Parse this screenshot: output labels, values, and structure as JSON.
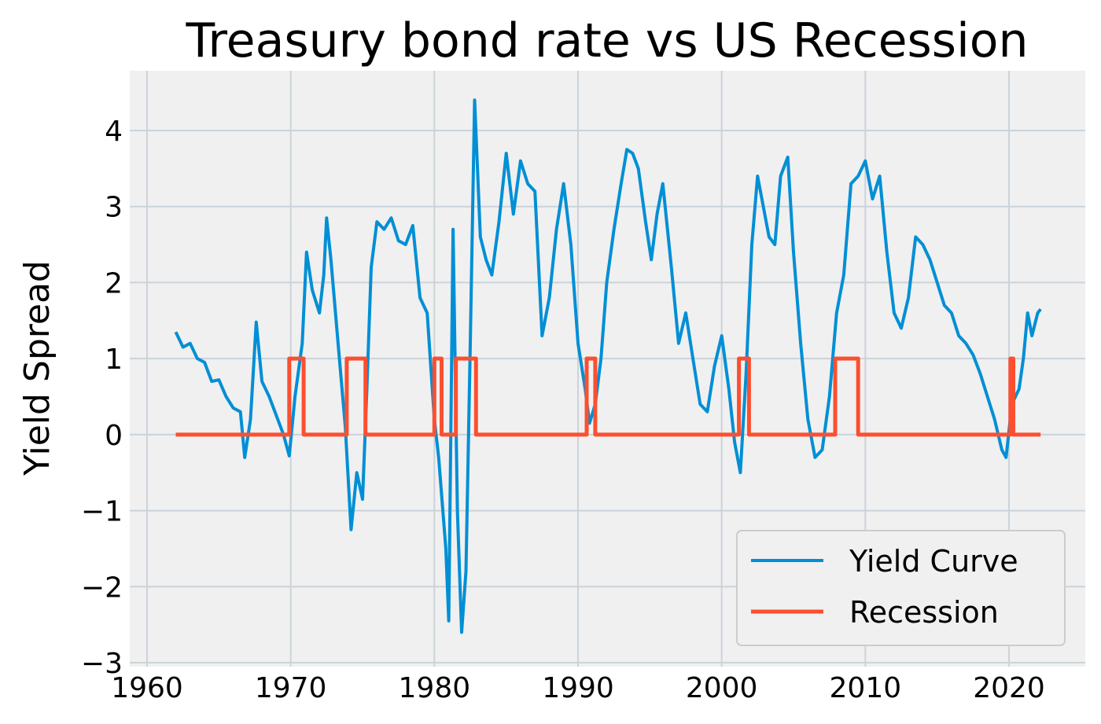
{
  "chart_data": {
    "type": "line",
    "title": "Treasury bond rate vs US Recession",
    "xlabel": "",
    "ylabel": "Yield Spread",
    "xlim": [
      1959.3,
      1964.6
    ],
    "ylim": [
      -3,
      4.8
    ],
    "x_ticks": [
      1960,
      1970,
      1980,
      1990,
      2000,
      2010,
      2020
    ],
    "y_ticks": [
      -3,
      -2,
      -1,
      0,
      1,
      2,
      3,
      4
    ],
    "x_tick_labels": [
      "1960",
      "1970",
      "1980",
      "1990",
      "2000",
      "2010",
      "2020"
    ],
    "y_tick_labels": [
      "−3",
      "−2",
      "−1",
      "0",
      "1",
      "2",
      "3",
      "4"
    ],
    "grid": true,
    "legend_position": "lower-right",
    "series": [
      {
        "name": "Yield Curve",
        "color": "#008fd5",
        "points": [
          [
            1962.0,
            1.35
          ],
          [
            1962.5,
            1.15
          ],
          [
            1963.0,
            1.2
          ],
          [
            1963.5,
            1.0
          ],
          [
            1964.0,
            0.95
          ],
          [
            1964.5,
            0.7
          ],
          [
            1965.0,
            0.72
          ],
          [
            1965.5,
            0.5
          ],
          [
            1966.0,
            0.35
          ],
          [
            1966.5,
            0.3
          ],
          [
            1966.8,
            -0.3
          ],
          [
            1967.2,
            0.2
          ],
          [
            1967.6,
            1.48
          ],
          [
            1968.0,
            0.7
          ],
          [
            1968.5,
            0.5
          ],
          [
            1969.0,
            0.25
          ],
          [
            1969.5,
            0.0
          ],
          [
            1969.9,
            -0.28
          ],
          [
            1970.3,
            0.5
          ],
          [
            1970.8,
            1.2
          ],
          [
            1971.1,
            2.4
          ],
          [
            1971.5,
            1.9
          ],
          [
            1972.0,
            1.6
          ],
          [
            1972.3,
            2.1
          ],
          [
            1972.5,
            2.85
          ],
          [
            1972.8,
            2.3
          ],
          [
            1973.3,
            1.2
          ],
          [
            1973.8,
            0.1
          ],
          [
            1974.2,
            -1.25
          ],
          [
            1974.6,
            -0.5
          ],
          [
            1975.0,
            -0.85
          ],
          [
            1975.3,
            0.6
          ],
          [
            1975.6,
            2.2
          ],
          [
            1976.0,
            2.8
          ],
          [
            1976.5,
            2.7
          ],
          [
            1977.0,
            2.85
          ],
          [
            1977.5,
            2.55
          ],
          [
            1978.0,
            2.5
          ],
          [
            1978.5,
            2.75
          ],
          [
            1979.0,
            1.8
          ],
          [
            1979.5,
            1.6
          ],
          [
            1980.0,
            0.2
          ],
          [
            1980.3,
            -0.3
          ],
          [
            1980.8,
            -1.5
          ],
          [
            1981.0,
            -2.45
          ],
          [
            1981.3,
            2.7
          ],
          [
            1981.6,
            -1.0
          ],
          [
            1981.9,
            -2.6
          ],
          [
            1982.2,
            -1.8
          ],
          [
            1982.5,
            1.2
          ],
          [
            1982.8,
            4.4
          ],
          [
            1983.2,
            2.6
          ],
          [
            1983.6,
            2.3
          ],
          [
            1984.0,
            2.1
          ],
          [
            1984.5,
            2.8
          ],
          [
            1985.0,
            3.7
          ],
          [
            1985.5,
            2.9
          ],
          [
            1986.0,
            3.6
          ],
          [
            1986.5,
            3.3
          ],
          [
            1987.0,
            3.2
          ],
          [
            1987.5,
            1.3
          ],
          [
            1988.0,
            1.8
          ],
          [
            1988.5,
            2.7
          ],
          [
            1989.0,
            3.3
          ],
          [
            1989.5,
            2.5
          ],
          [
            1990.0,
            1.2
          ],
          [
            1990.5,
            0.6
          ],
          [
            1990.8,
            0.15
          ],
          [
            1991.2,
            0.4
          ],
          [
            1991.6,
            1.0
          ],
          [
            1992.0,
            2.0
          ],
          [
            1992.5,
            2.7
          ],
          [
            1993.0,
            3.3
          ],
          [
            1993.4,
            3.75
          ],
          [
            1993.8,
            3.7
          ],
          [
            1994.2,
            3.5
          ],
          [
            1994.7,
            2.8
          ],
          [
            1995.1,
            2.3
          ],
          [
            1995.5,
            2.9
          ],
          [
            1995.9,
            3.3
          ],
          [
            1996.5,
            2.2
          ],
          [
            1997.0,
            1.2
          ],
          [
            1997.5,
            1.6
          ],
          [
            1998.0,
            1.0
          ],
          [
            1998.5,
            0.4
          ],
          [
            1999.0,
            0.3
          ],
          [
            1999.5,
            0.9
          ],
          [
            2000.0,
            1.3
          ],
          [
            2000.5,
            0.6
          ],
          [
            2000.9,
            -0.1
          ],
          [
            2001.3,
            -0.5
          ],
          [
            2001.7,
            0.8
          ],
          [
            2002.1,
            2.5
          ],
          [
            2002.5,
            3.4
          ],
          [
            2002.9,
            3.0
          ],
          [
            2003.3,
            2.6
          ],
          [
            2003.7,
            2.5
          ],
          [
            2004.1,
            3.4
          ],
          [
            2004.6,
            3.65
          ],
          [
            2005.0,
            2.4
          ],
          [
            2005.5,
            1.2
          ],
          [
            2006.0,
            0.2
          ],
          [
            2006.5,
            -0.3
          ],
          [
            2007.0,
            -0.2
          ],
          [
            2007.5,
            0.5
          ],
          [
            2008.0,
            1.6
          ],
          [
            2008.5,
            2.1
          ],
          [
            2009.0,
            3.3
          ],
          [
            2009.5,
            3.4
          ],
          [
            2010.0,
            3.6
          ],
          [
            2010.5,
            3.1
          ],
          [
            2011.0,
            3.4
          ],
          [
            2011.5,
            2.4
          ],
          [
            2012.0,
            1.6
          ],
          [
            2012.5,
            1.4
          ],
          [
            2013.0,
            1.8
          ],
          [
            2013.5,
            2.6
          ],
          [
            2014.0,
            2.5
          ],
          [
            2014.5,
            2.3
          ],
          [
            2015.0,
            2.0
          ],
          [
            2015.5,
            1.7
          ],
          [
            2016.0,
            1.6
          ],
          [
            2016.5,
            1.3
          ],
          [
            2017.0,
            1.2
          ],
          [
            2017.5,
            1.05
          ],
          [
            2018.0,
            0.8
          ],
          [
            2018.5,
            0.5
          ],
          [
            2019.0,
            0.2
          ],
          [
            2019.5,
            -0.2
          ],
          [
            2019.8,
            -0.3
          ],
          [
            2020.2,
            0.4
          ],
          [
            2020.7,
            0.6
          ],
          [
            2021.0,
            1.0
          ],
          [
            2021.3,
            1.6
          ],
          [
            2021.6,
            1.3
          ],
          [
            2022.0,
            1.6
          ],
          [
            2022.2,
            1.65
          ]
        ]
      },
      {
        "name": "Recession",
        "color": "#fc4f30",
        "points": [
          [
            1962.0,
            0
          ],
          [
            1969.9,
            0
          ],
          [
            1969.9,
            1
          ],
          [
            1970.9,
            1
          ],
          [
            1970.9,
            0
          ],
          [
            1973.9,
            0
          ],
          [
            1973.9,
            1
          ],
          [
            1975.2,
            1
          ],
          [
            1975.2,
            0
          ],
          [
            1980.0,
            0
          ],
          [
            1980.0,
            1
          ],
          [
            1980.5,
            1
          ],
          [
            1980.5,
            0
          ],
          [
            1981.5,
            0
          ],
          [
            1981.5,
            1
          ],
          [
            1982.9,
            1
          ],
          [
            1982.9,
            0
          ],
          [
            1990.6,
            0
          ],
          [
            1990.6,
            1
          ],
          [
            1991.2,
            1
          ],
          [
            1991.2,
            0
          ],
          [
            2001.2,
            0
          ],
          [
            2001.2,
            1
          ],
          [
            2001.9,
            1
          ],
          [
            2001.9,
            0
          ],
          [
            2007.9,
            0
          ],
          [
            2007.9,
            1
          ],
          [
            2009.5,
            1
          ],
          [
            2009.5,
            0
          ],
          [
            2020.1,
            0
          ],
          [
            2020.1,
            1
          ],
          [
            2020.3,
            1
          ],
          [
            2020.3,
            0
          ],
          [
            2022.2,
            0
          ]
        ]
      }
    ]
  }
}
